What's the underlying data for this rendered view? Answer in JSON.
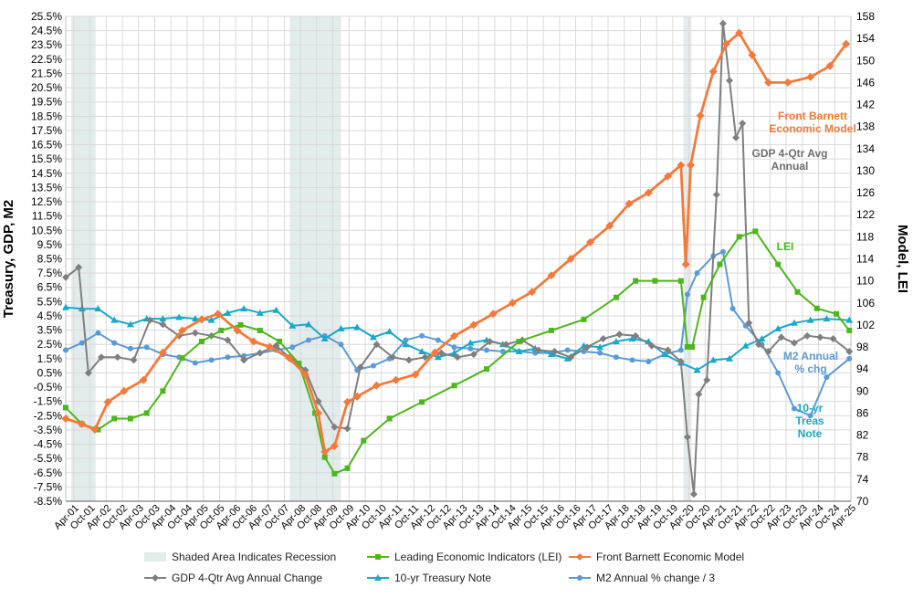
{
  "chart_data": {
    "type": "line",
    "title": "",
    "ylabel_left": "Treasury, GDP, M2",
    "ylabel_right": "Model, LEI",
    "ylim_left": [
      -8.5,
      25.5
    ],
    "ylim_right": [
      70,
      158
    ],
    "left_ticks": [
      "25.5%",
      "24.5%",
      "23.5%",
      "22.5%",
      "21.5%",
      "20.5%",
      "19.5%",
      "18.5%",
      "17.5%",
      "16.5%",
      "15.5%",
      "14.5%",
      "13.5%",
      "12.5%",
      "11.5%",
      "10.5%",
      "9.5%",
      "8.5%",
      "7.5%",
      "6.5%",
      "5.5%",
      "4.5%",
      "3.5%",
      "2.5%",
      "1.5%",
      "0.5%",
      "-0.5%",
      "-1.5%",
      "-2.5%",
      "-3.5%",
      "-4.5%",
      "-5.5%",
      "-6.5%",
      "-7.5%",
      "-8.5%"
    ],
    "right_ticks": [
      "158",
      "154",
      "150",
      "146",
      "142",
      "138",
      "134",
      "130",
      "126",
      "122",
      "118",
      "114",
      "110",
      "106",
      "102",
      "98",
      "94",
      "90",
      "86",
      "82",
      "78",
      "74",
      "70"
    ],
    "x_ticks": [
      "Apr-01",
      "Oct-01",
      "Apr-02",
      "Oct-02",
      "Apr-03",
      "Oct-03",
      "Apr-04",
      "Oct-04",
      "Apr-05",
      "Oct-05",
      "Apr-06",
      "Oct-06",
      "Apr-07",
      "Oct-07",
      "Apr-08",
      "Oct-08",
      "Apr-09",
      "Oct-09",
      "Apr-10",
      "Oct-10",
      "Apr-11",
      "Oct-11",
      "Apr-12",
      "Oct-12",
      "Apr-13",
      "Oct-13",
      "Apr-14",
      "Oct-14",
      "Apr-15",
      "Oct-15",
      "Apr-16",
      "Oct-16",
      "Apr-17",
      "Oct-17",
      "Apr-18",
      "Oct-18",
      "Apr-19",
      "Oct-19",
      "Apr-20",
      "Oct-20",
      "Apr-21",
      "Oct-21",
      "Apr-22",
      "Oct-22",
      "Apr-23",
      "Oct-23",
      "Apr-24",
      "Oct-24",
      "Apr-25"
    ],
    "x_start": 2001.0,
    "x_end": 2025.25,
    "grid": true,
    "recessions": [
      [
        2001.17,
        2001.92
      ],
      [
        2007.92,
        2009.5
      ],
      [
        2020.08,
        2020.33
      ]
    ],
    "annotations": [
      {
        "text": [
          "Front Barnett",
          "Economic Model"
        ],
        "color": "#f37a3b"
      },
      {
        "text": [
          "GDP 4-Qtr Avg",
          "Annual"
        ],
        "color": "#6d6d6d"
      },
      {
        "text": [
          "LEI"
        ],
        "color": "#4cb71c"
      },
      {
        "text": [
          "M2 Annual",
          "% chg"
        ],
        "color": "#5b9bd5"
      },
      {
        "text": [
          "10-yr",
          "Treas",
          "Note"
        ],
        "color": "#19a9c8"
      }
    ],
    "series": [
      {
        "name": "Front Barnett Economic Model",
        "axis": "right",
        "color": "#f37a3b",
        "marker": "diamond",
        "x": [
          2001.0,
          2001.5,
          2001.9,
          2002.3,
          2002.8,
          2003.4,
          2004.0,
          2004.6,
          2005.2,
          2005.7,
          2006.3,
          2006.8,
          2007.3,
          2007.9,
          2008.4,
          2008.8,
          2009.0,
          2009.3,
          2009.7,
          2010.0,
          2010.6,
          2011.2,
          2011.8,
          2012.4,
          2013.0,
          2013.6,
          2014.2,
          2014.8,
          2015.4,
          2016.0,
          2016.6,
          2017.2,
          2017.8,
          2018.4,
          2019.0,
          2019.6,
          2020.0,
          2020.15,
          2020.3,
          2020.6,
          2021.0,
          2021.4,
          2021.8,
          2022.2,
          2022.7,
          2023.3,
          2024.0,
          2024.6,
          2025.1
        ],
        "y": [
          85,
          84,
          83,
          88,
          90,
          92,
          97,
          101,
          103,
          104,
          101,
          99,
          98,
          96,
          93,
          86,
          79,
          80,
          88,
          89,
          91,
          92,
          93,
          97,
          100,
          102,
          104,
          106,
          108,
          111,
          114,
          117,
          120,
          124,
          126,
          129,
          131,
          113,
          131,
          140,
          148,
          153,
          155,
          151,
          146,
          146,
          147,
          149,
          153
        ]
      },
      {
        "name": "Leading Economic Indicators (LEI)",
        "axis": "right",
        "color": "#4cb71c",
        "marker": "square",
        "x": [
          2001.0,
          2001.5,
          2002.0,
          2002.5,
          2003.0,
          2003.5,
          2004.0,
          2004.6,
          2005.2,
          2005.8,
          2006.4,
          2007.0,
          2007.6,
          2008.2,
          2008.7,
          2009.0,
          2009.3,
          2009.7,
          2010.2,
          2011.0,
          2012.0,
          2013.0,
          2014.0,
          2015.0,
          2016.0,
          2017.0,
          2018.0,
          2018.6,
          2019.2,
          2020.0,
          2020.2,
          2020.35,
          2020.7,
          2021.2,
          2021.8,
          2022.3,
          2023.0,
          2023.6,
          2024.2,
          2024.8,
          2025.2
        ],
        "y": [
          87,
          84,
          83,
          85,
          85,
          86,
          90,
          96,
          99,
          101,
          102,
          101,
          99,
          95,
          86,
          78,
          75,
          76,
          81,
          85,
          88,
          91,
          94,
          99,
          101,
          103,
          107,
          110,
          110,
          110,
          98,
          98,
          107,
          113,
          118,
          119,
          113,
          108,
          105,
          104,
          101
        ]
      },
      {
        "name": "GDP 4-Qtr Avg Annual Change",
        "axis": "left",
        "color": "#7f7f7f",
        "marker": "diamond",
        "x": [
          2001.0,
          2001.4,
          2001.7,
          2002.1,
          2002.6,
          2003.1,
          2003.6,
          2004.0,
          2004.5,
          2005.0,
          2005.5,
          2006.0,
          2006.5,
          2007.0,
          2007.5,
          2008.0,
          2008.4,
          2008.8,
          2009.3,
          2009.7,
          2010.1,
          2010.6,
          2011.1,
          2011.6,
          2012.1,
          2012.6,
          2013.1,
          2013.6,
          2014.1,
          2014.6,
          2015.1,
          2015.6,
          2016.1,
          2016.6,
          2017.1,
          2017.6,
          2018.1,
          2018.6,
          2019.1,
          2019.6,
          2020.0,
          2020.2,
          2020.4,
          2020.55,
          2020.8,
          2021.1,
          2021.3,
          2021.5,
          2021.7,
          2021.9,
          2022.1,
          2022.4,
          2022.7,
          2023.1,
          2023.5,
          2023.9,
          2024.3,
          2024.7,
          2025.2
        ],
        "y": [
          7.2,
          7.9,
          0.5,
          1.6,
          1.6,
          1.4,
          4.2,
          3.9,
          3.1,
          3.3,
          3.1,
          2.8,
          1.4,
          1.9,
          2.4,
          1.4,
          0.7,
          -1.5,
          -3.3,
          -3.4,
          0.9,
          2.5,
          1.6,
          1.4,
          1.6,
          1.9,
          1.6,
          1.8,
          2.7,
          2.5,
          2.8,
          2.1,
          2.0,
          1.6,
          2.3,
          2.9,
          3.2,
          3.1,
          2.4,
          2.1,
          1.3,
          -4.0,
          -8.0,
          -1.0,
          0.0,
          13.0,
          25.0,
          21.0,
          17.0,
          18.0,
          4.0,
          2.5,
          2.0,
          3.0,
          2.6,
          3.1,
          3.0,
          2.9,
          2.0
        ]
      },
      {
        "name": "10-yr Treasury Note",
        "axis": "left",
        "color": "#19a9c8",
        "marker": "triangle",
        "x": [
          2001.0,
          2001.5,
          2002.0,
          2002.5,
          2003.0,
          2003.5,
          2004.0,
          2004.5,
          2005.0,
          2005.5,
          2006.0,
          2006.5,
          2007.0,
          2007.5,
          2008.0,
          2008.5,
          2009.0,
          2009.5,
          2010.0,
          2010.5,
          2011.0,
          2011.5,
          2012.0,
          2012.5,
          2013.0,
          2013.5,
          2014.0,
          2014.5,
          2015.0,
          2015.5,
          2016.0,
          2016.5,
          2017.0,
          2017.5,
          2018.0,
          2018.5,
          2019.0,
          2019.5,
          2020.0,
          2020.5,
          2021.0,
          2021.5,
          2022.0,
          2022.5,
          2023.0,
          2023.5,
          2024.0,
          2024.5,
          2025.2
        ],
        "y": [
          5.1,
          5.0,
          5.0,
          4.2,
          3.9,
          4.3,
          4.3,
          4.4,
          4.3,
          4.2,
          4.7,
          5.0,
          4.7,
          4.9,
          3.8,
          3.9,
          2.9,
          3.6,
          3.7,
          3.0,
          3.4,
          2.5,
          2.0,
          1.6,
          1.9,
          2.6,
          2.8,
          2.5,
          2.0,
          2.2,
          1.8,
          1.5,
          2.4,
          2.3,
          2.7,
          2.9,
          2.7,
          1.8,
          1.2,
          0.7,
          1.4,
          1.5,
          2.4,
          2.9,
          3.6,
          4.0,
          4.2,
          4.3,
          4.2
        ]
      },
      {
        "name": "M2 Annual % change / 3",
        "axis": "left",
        "color": "#5b9bd5",
        "marker": "circle",
        "x": [
          2001.0,
          2001.5,
          2002.0,
          2002.5,
          2003.0,
          2003.5,
          2004.0,
          2004.5,
          2005.0,
          2005.5,
          2006.0,
          2006.5,
          2007.0,
          2007.5,
          2008.0,
          2008.5,
          2009.0,
          2009.5,
          2010.0,
          2010.5,
          2011.0,
          2011.5,
          2012.0,
          2012.5,
          2013.0,
          2013.5,
          2014.0,
          2014.5,
          2015.0,
          2015.5,
          2016.0,
          2016.5,
          2017.0,
          2017.5,
          2018.0,
          2018.5,
          2019.0,
          2019.5,
          2020.0,
          2020.2,
          2020.5,
          2021.0,
          2021.3,
          2021.6,
          2022.0,
          2022.5,
          2023.0,
          2023.5,
          2024.0,
          2024.5,
          2025.2
        ],
        "y": [
          2.1,
          2.6,
          3.3,
          2.6,
          2.2,
          2.3,
          1.8,
          1.6,
          1.2,
          1.4,
          1.6,
          1.7,
          1.9,
          2.1,
          2.3,
          2.8,
          3.1,
          2.5,
          0.7,
          1.0,
          1.5,
          2.8,
          3.1,
          2.8,
          2.3,
          2.2,
          2.1,
          2.0,
          2.0,
          1.9,
          1.9,
          2.1,
          2.0,
          1.9,
          1.6,
          1.4,
          1.3,
          1.8,
          2.1,
          6.0,
          7.5,
          8.7,
          9.0,
          5.0,
          3.8,
          2.5,
          0.5,
          -2.0,
          -2.5,
          0.2,
          1.5
        ]
      }
    ]
  },
  "legend": {
    "items": [
      {
        "label": "Shaded Area Indicates Recession",
        "color": "#e3ecec",
        "marker": "box"
      },
      {
        "label": "Leading Economic Indicators (LEI)",
        "color": "#4cb71c",
        "marker": "square"
      },
      {
        "label": "Front Barnett Economic Model",
        "color": "#f37a3b",
        "marker": "diamond"
      },
      {
        "label": "GDP 4-Qtr Avg Annual Change",
        "color": "#7f7f7f",
        "marker": "diamond"
      },
      {
        "label": "10-yr Treasury Note",
        "color": "#19a9c8",
        "marker": "triangle"
      },
      {
        "label": "M2 Annual % change / 3",
        "color": "#5b9bd5",
        "marker": "circle"
      }
    ]
  }
}
